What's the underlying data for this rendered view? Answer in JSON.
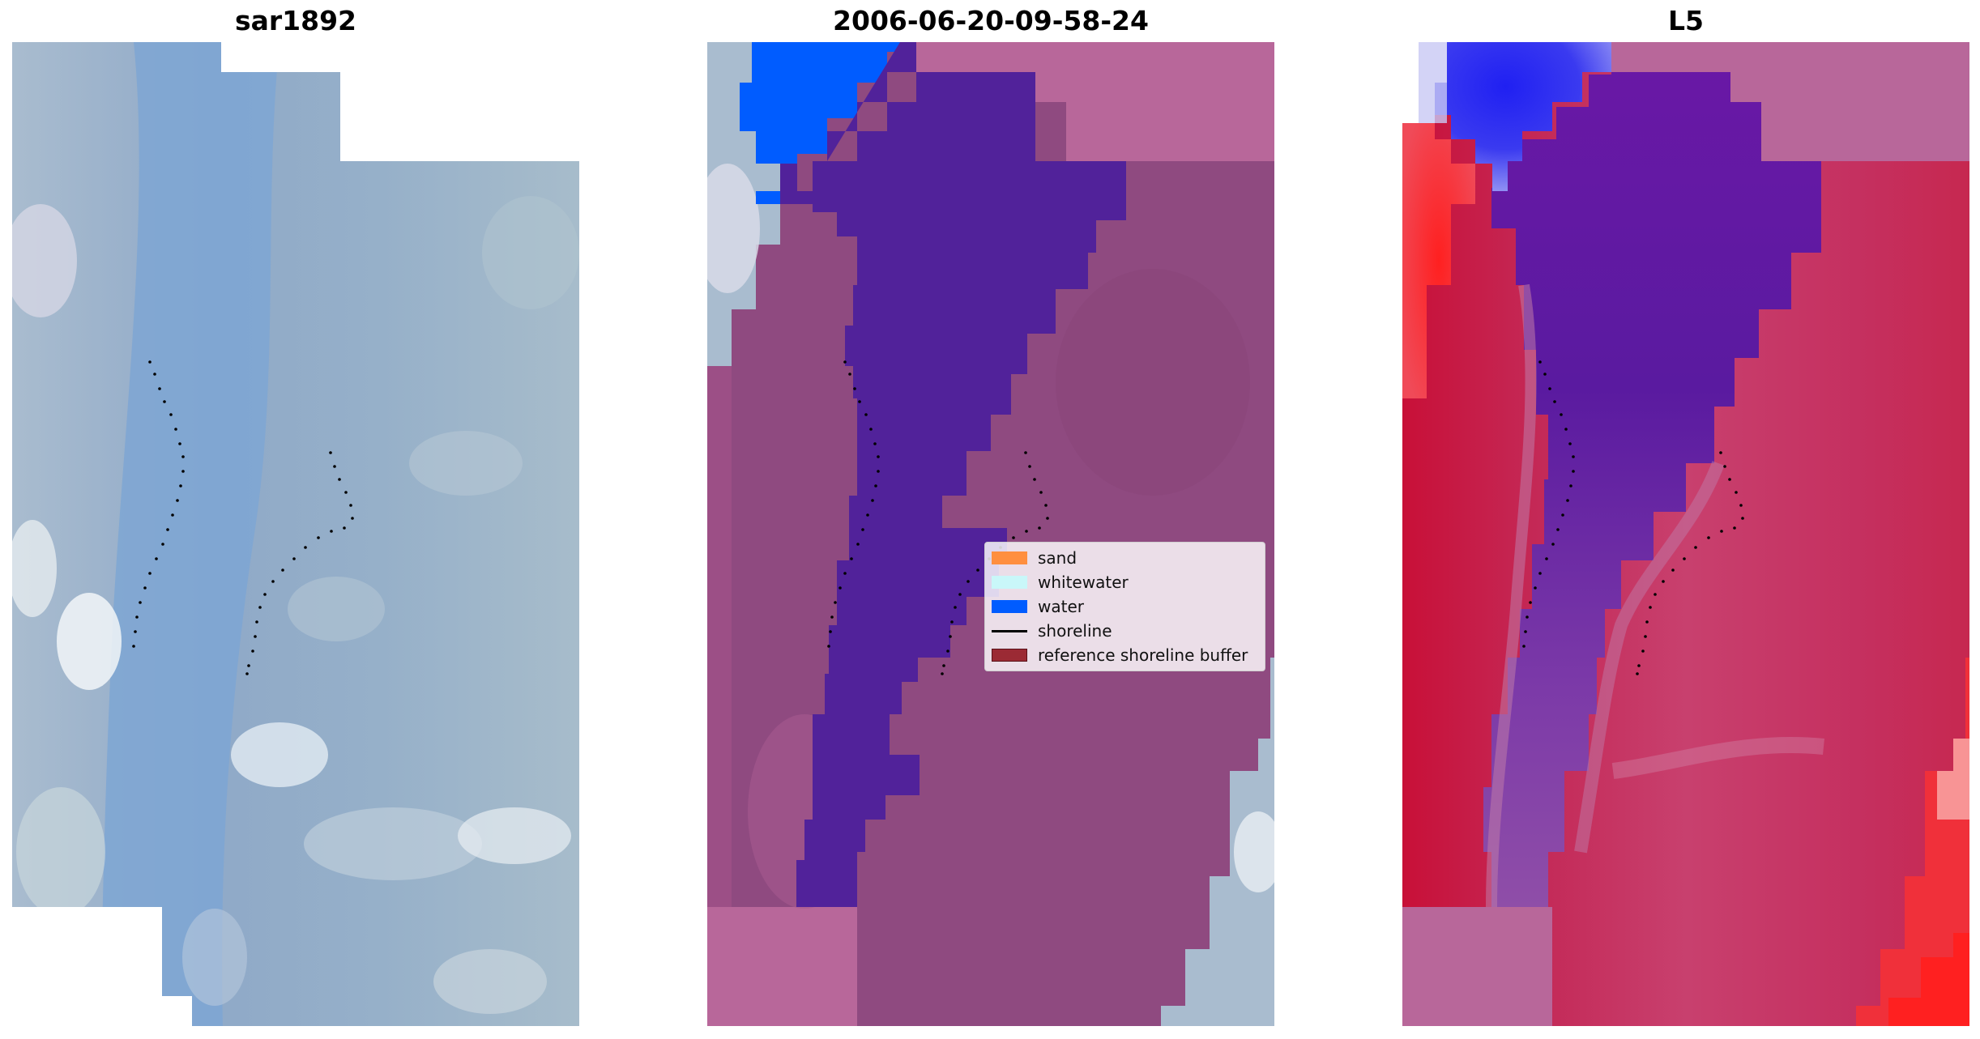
{
  "panels": [
    {
      "title": "sar1892"
    },
    {
      "title": "2006-06-20-09-58-24"
    },
    {
      "title": "L5"
    }
  ],
  "legend": {
    "items": [
      {
        "label": "sand",
        "color": "#ff8f3f",
        "kind": "patch"
      },
      {
        "label": "whitewater",
        "color": "#c9f7f9",
        "kind": "patch"
      },
      {
        "label": "water",
        "color": "#005cff",
        "kind": "patch"
      },
      {
        "label": "shoreline",
        "color": "#000000",
        "kind": "line"
      },
      {
        "label": "reference shoreline buffer",
        "color": "#9b2a34",
        "kind": "patch"
      }
    ]
  },
  "colors": {
    "rgb_base": "#90a8c4",
    "river_blue": "#7aa8d8",
    "buffer_mauve": "#8f4a80",
    "buffer_edge": "#b8679a",
    "water_class": "#005cff",
    "channel_purple": "#51229a",
    "index_red": "#c6204e",
    "index_purple": "#5a1a9e",
    "index_blue": "#2a2af0"
  }
}
